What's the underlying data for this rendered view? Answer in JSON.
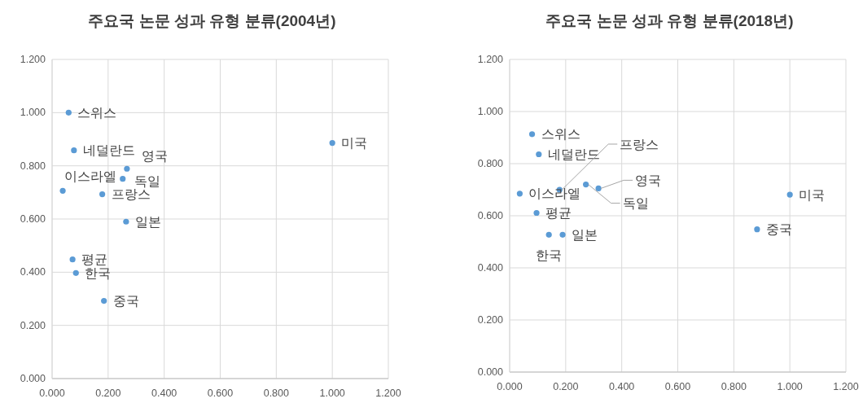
{
  "chart_data": [
    {
      "type": "scatter",
      "title": "주요국 논문 성과 유형 분류(2004년)",
      "color": "#5b9bd5",
      "marker": "circle",
      "grid": true,
      "x": [
        0.059,
        0.078,
        0.267,
        0.252,
        0.038,
        0.179,
        0.264,
        0.073,
        0.085,
        0.185,
        1.0
      ],
      "values": [
        1.0,
        0.858,
        0.789,
        0.751,
        0.706,
        0.693,
        0.59,
        0.448,
        0.397,
        0.292,
        0.886
      ],
      "xlim": [
        0,
        1.2
      ],
      "ylim": [
        0,
        1.2
      ],
      "xticks": [
        {
          "value": 0,
          "label": "0.000"
        },
        {
          "value": 0.2,
          "label": "0.200"
        },
        {
          "value": 0.4,
          "label": "0.400"
        },
        {
          "value": 0.6,
          "label": "0.600"
        },
        {
          "value": 0.8,
          "label": "0.800"
        },
        {
          "value": 1.0,
          "label": "1.000"
        },
        {
          "value": 1.2,
          "label": "1.200"
        }
      ],
      "yticks": [
        {
          "value": 0,
          "label": "0.000"
        },
        {
          "value": 0.2,
          "label": "0.200"
        },
        {
          "value": 0.4,
          "label": "0.400"
        },
        {
          "value": 0.6,
          "label": "0.600"
        },
        {
          "value": 0.8,
          "label": "0.800"
        },
        {
          "value": 1.0,
          "label": "1.000"
        },
        {
          "value": 1.2,
          "label": "1.200"
        }
      ],
      "annotations": [
        {
          "text": "스위스",
          "x": 0.059,
          "y": 1.0
        },
        {
          "text": "네덜란드",
          "x": 0.078,
          "y": 0.858
        },
        {
          "text": "영국",
          "x": 0.267,
          "y": 0.789
        },
        {
          "text": "독일",
          "x": 0.252,
          "y": 0.751
        },
        {
          "text": "이스라엘",
          "x": 0.038,
          "y": 0.706
        },
        {
          "text": "프랑스",
          "x": 0.179,
          "y": 0.693
        },
        {
          "text": "일본",
          "x": 0.264,
          "y": 0.59
        },
        {
          "text": "평균",
          "x": 0.073,
          "y": 0.448
        },
        {
          "text": "한국",
          "x": 0.085,
          "y": 0.397
        },
        {
          "text": "중국",
          "x": 0.185,
          "y": 0.292
        },
        {
          "text": "미국",
          "x": 1.0,
          "y": 0.886
        }
      ]
    },
    {
      "type": "scatter",
      "title": "주요국 논문 성과 유형 분류(2018년)",
      "color": "#5b9bd5",
      "marker": "circle",
      "grid": true,
      "x": [
        0.08,
        0.104,
        0.178,
        0.317,
        0.272,
        0.036,
        0.096,
        0.14,
        0.189,
        0.883,
        1.0
      ],
      "values": [
        0.913,
        0.836,
        0.7,
        0.705,
        0.72,
        0.685,
        0.611,
        0.527,
        0.527,
        0.548,
        0.681
      ],
      "xlim": [
        0,
        1.2
      ],
      "ylim": [
        0,
        1.2
      ],
      "xticks": [
        {
          "value": 0,
          "label": "0.000"
        },
        {
          "value": 0.2,
          "label": "0.200"
        },
        {
          "value": 0.4,
          "label": "0.400"
        },
        {
          "value": 0.6,
          "label": "0.600"
        },
        {
          "value": 0.8,
          "label": "0.800"
        },
        {
          "value": 1.0,
          "label": "1.000"
        },
        {
          "value": 1.2,
          "label": "1.200"
        }
      ],
      "yticks": [
        {
          "value": 0,
          "label": "0.000"
        },
        {
          "value": 0.2,
          "label": "0.200"
        },
        {
          "value": 0.4,
          "label": "0.400"
        },
        {
          "value": 0.6,
          "label": "0.600"
        },
        {
          "value": 0.8,
          "label": "0.800"
        },
        {
          "value": 1.0,
          "label": "1.000"
        },
        {
          "value": 1.2,
          "label": "1.200"
        }
      ],
      "annotations": [
        {
          "text": "스위스",
          "x": 0.08,
          "y": 0.913
        },
        {
          "text": "네덜란드",
          "x": 0.104,
          "y": 0.836
        },
        {
          "text": "프랑스",
          "x": 0.178,
          "y": 0.7
        },
        {
          "text": "영국",
          "x": 0.317,
          "y": 0.705
        },
        {
          "text": "독일",
          "x": 0.272,
          "y": 0.72
        },
        {
          "text": "이스라엘",
          "x": 0.036,
          "y": 0.685
        },
        {
          "text": "평균",
          "x": 0.096,
          "y": 0.611
        },
        {
          "text": "한국",
          "x": 0.14,
          "y": 0.527
        },
        {
          "text": "일본",
          "x": 0.189,
          "y": 0.527
        },
        {
          "text": "중국",
          "x": 0.883,
          "y": 0.548
        },
        {
          "text": "미국",
          "x": 1.0,
          "y": 0.681
        }
      ]
    }
  ]
}
